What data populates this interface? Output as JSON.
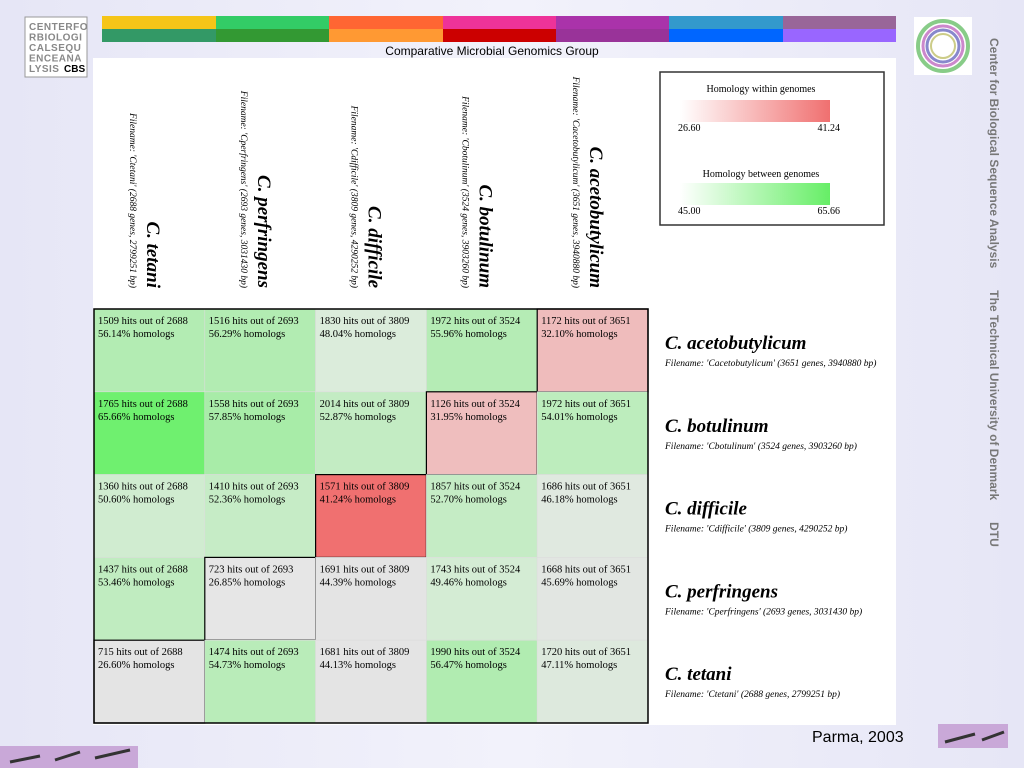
{
  "header": {
    "title": "Comparative Microbial Genomics Group",
    "logo_lines": [
      "CENTERFO",
      "RBIOLOGI",
      "CALSEQU",
      "ENCEANA",
      "LYSIS"
    ],
    "logo_mark": "CBS"
  },
  "side_texts": [
    "Center for Biological Sequence Analysis",
    "The Technical University of Denmark",
    "DTU"
  ],
  "footer": "Parma, 2003",
  "legend": {
    "within": {
      "title": "Homology within genomes",
      "min": "26.60",
      "max": "41.24",
      "color": "#f07070"
    },
    "between": {
      "title": "Homology between genomes",
      "min": "45.00",
      "max": "65.66",
      "color": "#66ee66"
    }
  },
  "columns": [
    {
      "name": "C. tetani",
      "file": "Filename: 'Ctetani' (2688 genes, 2799251 bp)"
    },
    {
      "name": "C. perfringens",
      "file": "Filename: 'Cperfringens' (2693 genes, 3031430 bp)"
    },
    {
      "name": "C. difficile",
      "file": "Filename: 'Cdifficile' (3809 genes, 4290252 bp)"
    },
    {
      "name": "C. botulinum",
      "file": "Filename: 'Cbotulinum' (3524 genes, 3903260 bp)"
    },
    {
      "name": "C. acetobutylicum",
      "file": "Filename: 'Cacetobutylicum' (3651 genes, 3940880 bp)"
    }
  ],
  "rows": [
    {
      "name": "C. acetobutylicum",
      "file": "Filename: 'Cacetobutylicum' (3651 genes, 3940880 bp)",
      "cells": [
        {
          "hits": "1509 hits out of 2688",
          "homologs": "56.14% homologs",
          "color": "#b3ecb3"
        },
        {
          "hits": "1516 hits out of 2693",
          "homologs": "56.29% homologs",
          "color": "#b2ecb2"
        },
        {
          "hits": "1830 hits out of 3809",
          "homologs": "48.04% homologs",
          "color": "#dbecdb"
        },
        {
          "hits": "1972 hits out of 3524",
          "homologs": "55.96% homologs",
          "color": "#b5ecb5"
        },
        {
          "hits": "1172 hits out of 3651",
          "homologs": "32.10% homologs",
          "color": "#efbcbc"
        }
      ]
    },
    {
      "name": "C. botulinum",
      "file": "Filename: 'Cbotulinum' (3524 genes, 3903260 bp)",
      "cells": [
        {
          "hits": "1765 hits out of 2688",
          "homologs": "65.66% homologs",
          "color": "#6ff06f"
        },
        {
          "hits": "1558 hits out of 2693",
          "homologs": "57.85% homologs",
          "color": "#a8eca8"
        },
        {
          "hits": "2014 hits out of 3809",
          "homologs": "52.87% homologs",
          "color": "#c3ecc3"
        },
        {
          "hits": "1126 hits out of 3524",
          "homologs": "31.95% homologs",
          "color": "#efbebe"
        },
        {
          "hits": "1972 hits out of 3651",
          "homologs": "54.01% homologs",
          "color": "#bdedbd"
        }
      ]
    },
    {
      "name": "C. difficile",
      "file": "Filename: 'Cdifficile' (3809 genes, 4290252 bp)",
      "cells": [
        {
          "hits": "1360 hits out of 2688",
          "homologs": "50.60% homologs",
          "color": "#d0ecd0"
        },
        {
          "hits": "1410 hits out of 2693",
          "homologs": "52.36% homologs",
          "color": "#c6ecc6"
        },
        {
          "hits": "1571 hits out of 3809",
          "homologs": "41.24% homologs",
          "color": "#f07070"
        },
        {
          "hits": "1857 hits out of 3524",
          "homologs": "52.70% homologs",
          "color": "#c5ecc5"
        },
        {
          "hits": "1686 hits out of 3651",
          "homologs": "46.18% homologs",
          "color": "#e0e9e0"
        }
      ]
    },
    {
      "name": "C. perfringens",
      "file": "Filename: 'Cperfringens' (2693 genes, 3031430 bp)",
      "cells": [
        {
          "hits": "1437 hits out of 2688",
          "homologs": "53.46% homologs",
          "color": "#c0ecc0"
        },
        {
          "hits": "723 hits out of 2693",
          "homologs": "26.85% homologs",
          "color": "#e6e6e6"
        },
        {
          "hits": "1691 hits out of 3809",
          "homologs": "44.39% homologs",
          "color": "#e4e4e4"
        },
        {
          "hits": "1743 hits out of 3524",
          "homologs": "49.46% homologs",
          "color": "#d4ecd4"
        },
        {
          "hits": "1668 hits out of 3651",
          "homologs": "45.69% homologs",
          "color": "#e2e6e2"
        }
      ]
    },
    {
      "name": "C. tetani",
      "file": "Filename: 'Ctetani' (2688 genes, 2799251 bp)",
      "cells": [
        {
          "hits": "715 hits out of 2688",
          "homologs": "26.60% homologs",
          "color": "#e4e4e4"
        },
        {
          "hits": "1474 hits out of 2693",
          "homologs": "54.73% homologs",
          "color": "#b9ecb9"
        },
        {
          "hits": "1681 hits out of 3809",
          "homologs": "44.13% homologs",
          "color": "#e4e4e4"
        },
        {
          "hits": "1990 hits out of 3524",
          "homologs": "56.47% homologs",
          "color": "#b1ecb1"
        },
        {
          "hits": "1720 hits out of 3651",
          "homologs": "47.11% homologs",
          "color": "#dde9dd"
        }
      ]
    }
  ]
}
